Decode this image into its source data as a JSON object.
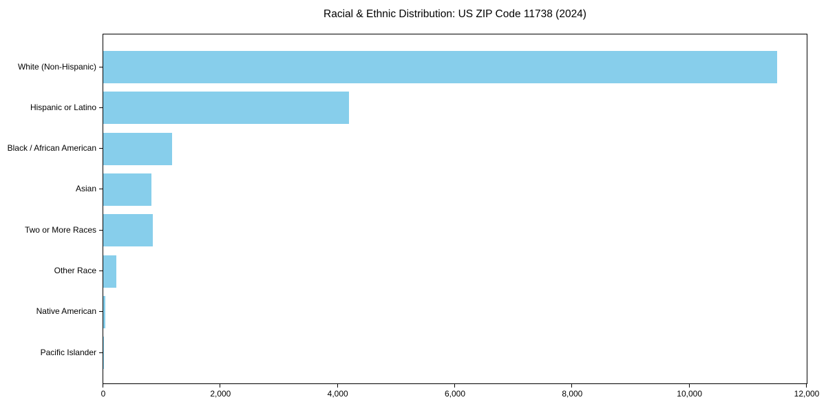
{
  "chart_data": {
    "type": "bar",
    "orientation": "horizontal",
    "title": "Racial & Ethnic Distribution: US ZIP Code 11738 (2024)",
    "categories": [
      "White (Non-Hispanic)",
      "Hispanic or Latino",
      "Black / African American",
      "Asian",
      "Two or More Races",
      "Other Race",
      "Native American",
      "Pacific Islander"
    ],
    "values": [
      11500,
      4190,
      1170,
      820,
      845,
      220,
      40,
      5
    ],
    "xlabel": "",
    "ylabel": "",
    "xlim": [
      0,
      12000
    ],
    "xticks": [
      0,
      2000,
      4000,
      6000,
      8000,
      10000,
      12000
    ],
    "xtick_labels": [
      "0",
      "2,000",
      "4,000",
      "6,000",
      "8,000",
      "10,000",
      "12,000"
    ],
    "bar_color": "#87CEEB",
    "axis_color": "#000000",
    "background_color": "#ffffff",
    "grid": false,
    "legend": null
  }
}
